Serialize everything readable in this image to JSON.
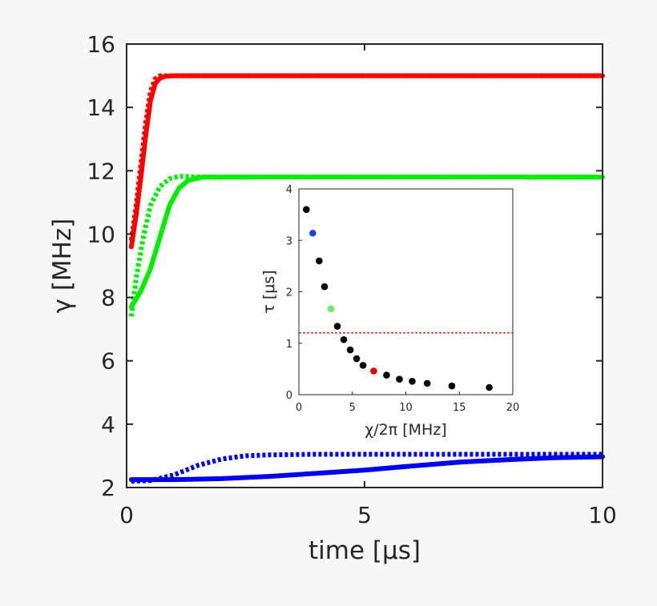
{
  "chart_data": [
    {
      "type": "line",
      "xlabel": "time [μs]",
      "ylabel": "γ [MHz]",
      "xlim": [
        0,
        10
      ],
      "ylim": [
        2,
        16
      ],
      "xticks": [
        "0",
        "5",
        "10"
      ],
      "yticks": [
        "2",
        "4",
        "6",
        "8",
        "10",
        "12",
        "14",
        "16"
      ],
      "series": [
        {
          "color": "#ff0000",
          "style": "solid",
          "x": [
            0.1,
            0.2,
            0.3,
            0.4,
            0.5,
            0.6,
            0.7,
            0.8,
            1.0,
            1.5,
            3,
            5,
            7,
            10
          ],
          "y": [
            9.6,
            10.6,
            11.8,
            13.1,
            14.2,
            14.75,
            14.92,
            14.98,
            15.0,
            15.0,
            15.0,
            15.0,
            15.0,
            15.0
          ]
        },
        {
          "color": "#ff0000",
          "style": "dotted",
          "x": [
            0.1,
            0.2,
            0.3,
            0.4,
            0.5,
            0.6,
            0.7,
            0.8,
            1.0,
            1.5,
            3,
            5,
            7,
            10
          ],
          "y": [
            9.8,
            10.9,
            12.2,
            13.5,
            14.5,
            14.9,
            15.0,
            15.0,
            15.0,
            15.0,
            15.0,
            15.0,
            15.0,
            15.0
          ]
        },
        {
          "color": "#00ee00",
          "style": "solid",
          "x": [
            0.1,
            0.3,
            0.5,
            0.7,
            0.9,
            1.1,
            1.3,
            1.6,
            2.0,
            3,
            5,
            7,
            10
          ],
          "y": [
            7.7,
            8.2,
            8.9,
            9.9,
            10.9,
            11.45,
            11.7,
            11.8,
            11.8,
            11.8,
            11.8,
            11.8,
            11.8
          ]
        },
        {
          "color": "#00ee00",
          "style": "dotted",
          "x": [
            0.1,
            0.2,
            0.35,
            0.5,
            0.7,
            0.9,
            1.1,
            1.3,
            1.6,
            2.0,
            3,
            5,
            7,
            10
          ],
          "y": [
            7.4,
            8.6,
            9.9,
            10.9,
            11.5,
            11.75,
            11.82,
            11.82,
            11.8,
            11.8,
            11.8,
            11.8,
            11.8,
            11.8
          ]
        },
        {
          "color": "#0000ee",
          "style": "solid",
          "x": [
            0.1,
            1,
            2,
            3,
            4,
            5,
            6,
            7,
            8,
            9,
            10
          ],
          "y": [
            2.25,
            2.25,
            2.28,
            2.35,
            2.45,
            2.55,
            2.68,
            2.8,
            2.88,
            2.94,
            2.97
          ]
        },
        {
          "color": "#0000ee",
          "style": "dotted",
          "x": [
            0.1,
            0.5,
            1,
            1.5,
            2,
            2.5,
            3,
            4,
            5,
            6,
            7,
            8,
            10
          ],
          "y": [
            2.2,
            2.22,
            2.4,
            2.7,
            2.9,
            3.0,
            3.03,
            3.05,
            3.05,
            3.05,
            3.05,
            3.05,
            3.05
          ]
        }
      ]
    },
    {
      "type": "scatter",
      "xlabel": "χ/2π [MHz]",
      "ylabel": "τ [μs]",
      "xlim": [
        0,
        20
      ],
      "ylim": [
        0,
        4
      ],
      "xticks": [
        "0",
        "5",
        "10",
        "15",
        "20"
      ],
      "yticks": [
        "0",
        "1",
        "2",
        "3",
        "4"
      ],
      "hline": {
        "y": 1.2,
        "color": "#cc0000",
        "style": "dashed"
      },
      "points": [
        {
          "x": 0.7,
          "y": 3.6,
          "color": "#000000"
        },
        {
          "x": 1.3,
          "y": 3.14,
          "color": "#1f3fff"
        },
        {
          "x": 1.9,
          "y": 2.6,
          "color": "#000000"
        },
        {
          "x": 2.4,
          "y": 2.1,
          "color": "#000000"
        },
        {
          "x": 3.0,
          "y": 1.67,
          "color": "#66ee66"
        },
        {
          "x": 3.6,
          "y": 1.33,
          "color": "#000000"
        },
        {
          "x": 4.2,
          "y": 1.07,
          "color": "#000000"
        },
        {
          "x": 4.8,
          "y": 0.87,
          "color": "#000000"
        },
        {
          "x": 5.4,
          "y": 0.7,
          "color": "#000000"
        },
        {
          "x": 6.0,
          "y": 0.57,
          "color": "#000000"
        },
        {
          "x": 7.0,
          "y": 0.46,
          "color": "#ee0000"
        },
        {
          "x": 8.2,
          "y": 0.38,
          "color": "#000000"
        },
        {
          "x": 9.4,
          "y": 0.3,
          "color": "#000000"
        },
        {
          "x": 10.6,
          "y": 0.26,
          "color": "#000000"
        },
        {
          "x": 12.0,
          "y": 0.22,
          "color": "#000000"
        },
        {
          "x": 14.3,
          "y": 0.17,
          "color": "#000000"
        },
        {
          "x": 17.8,
          "y": 0.14,
          "color": "#000000"
        }
      ]
    }
  ]
}
